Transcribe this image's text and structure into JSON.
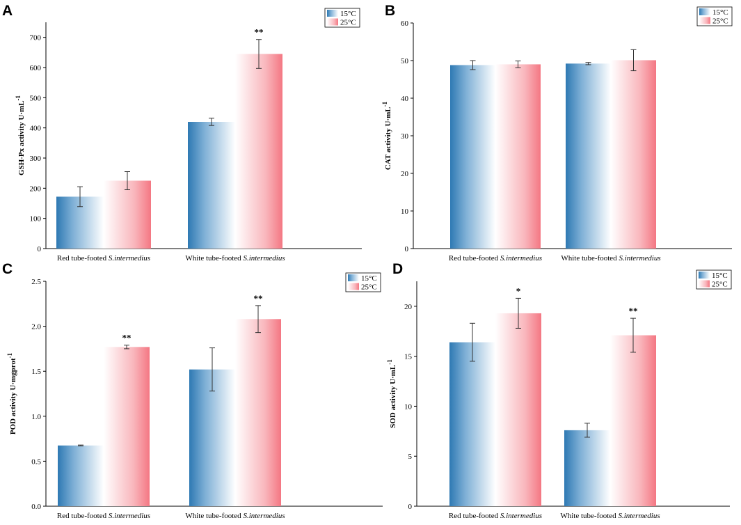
{
  "colors": {
    "series_15": "#2e79b3",
    "series_25": "#f47783",
    "axis": "#000000",
    "errorbar": "#333333"
  },
  "chart_data": [
    {
      "id": "A",
      "panel": "A",
      "type": "bar",
      "ylabel": "GSH-Px activity U·mL",
      "ylabel_sup": "-1",
      "ylim": [
        0,
        750
      ],
      "yticks": [
        0,
        100,
        200,
        300,
        400,
        500,
        600,
        700
      ],
      "ytick_labels": [
        "0",
        "100",
        "200",
        "300",
        "400",
        "500",
        "600",
        "700"
      ],
      "categories": [
        {
          "prefix": "Red tube-footed ",
          "species": "S.intermedius"
        },
        {
          "prefix": "White tube-footed ",
          "species": "S.intermedius"
        }
      ],
      "series": [
        {
          "name": "15°C",
          "values": [
            172,
            420
          ],
          "errors": [
            33,
            12
          ],
          "sig": [
            "",
            ""
          ]
        },
        {
          "name": "25°C",
          "values": [
            225,
            645
          ],
          "errors": [
            30,
            48
          ],
          "sig": [
            "",
            "**"
          ]
        }
      ]
    },
    {
      "id": "B",
      "panel": "B",
      "type": "bar",
      "ylabel": "CAT activity U·mL",
      "ylabel_sup": "-1",
      "ylim": [
        0,
        60
      ],
      "yticks": [
        0,
        10,
        20,
        30,
        40,
        50,
        60
      ],
      "ytick_labels": [
        "0",
        "10",
        "20",
        "30",
        "40",
        "50",
        "60"
      ],
      "categories": [
        {
          "prefix": "Red tube-footed ",
          "species": "S.intermedius"
        },
        {
          "prefix": "White tube-footed ",
          "species": "S.intermedius"
        }
      ],
      "series": [
        {
          "name": "15°C",
          "values": [
            48.8,
            49.2
          ],
          "errors": [
            1.2,
            0.3
          ],
          "sig": [
            "",
            ""
          ]
        },
        {
          "name": "25°C",
          "values": [
            49.0,
            50.1
          ],
          "errors": [
            0.9,
            2.8
          ],
          "sig": [
            "",
            ""
          ]
        }
      ]
    },
    {
      "id": "C",
      "panel": "C",
      "type": "bar",
      "ylabel": "POD activity U·mgprot",
      "ylabel_sup": "-1",
      "ylim": [
        0,
        2.5
      ],
      "yticks": [
        0,
        0.5,
        1.0,
        1.5,
        2.0,
        2.5
      ],
      "ytick_labels": [
        "0.0",
        "0.5",
        "1.0",
        "1.5",
        "2.0",
        "2.5"
      ],
      "categories": [
        {
          "prefix": "Red tube-footed ",
          "species": "S.intermedius"
        },
        {
          "prefix": "White tube-footed ",
          "species": "S.intermedius"
        }
      ],
      "series": [
        {
          "name": "15°C",
          "values": [
            0.675,
            1.52
          ],
          "errors": [
            0.005,
            0.24
          ],
          "sig": [
            "",
            ""
          ]
        },
        {
          "name": "25°C",
          "values": [
            1.77,
            2.08
          ],
          "errors": [
            0.02,
            0.15
          ],
          "sig": [
            "**",
            "**"
          ]
        }
      ]
    },
    {
      "id": "D",
      "panel": "D",
      "type": "bar",
      "ylabel": "SOD activity U·mL",
      "ylabel_sup": "-1",
      "ylim": [
        0,
        22.5
      ],
      "yticks": [
        0,
        5,
        10,
        15,
        20
      ],
      "ytick_labels": [
        "0",
        "5",
        "10",
        "15",
        "20"
      ],
      "categories": [
        {
          "prefix": "Red tube-footed ",
          "species": "S.intermedius"
        },
        {
          "prefix": "White tube-footed ",
          "species": "S.intermedius"
        }
      ],
      "series": [
        {
          "name": "15°C",
          "values": [
            16.4,
            7.6
          ],
          "errors": [
            1.9,
            0.7
          ],
          "sig": [
            "",
            ""
          ]
        },
        {
          "name": "25°C",
          "values": [
            19.3,
            17.1
          ],
          "errors": [
            1.5,
            1.7
          ],
          "sig": [
            "*",
            "**"
          ]
        }
      ]
    }
  ]
}
